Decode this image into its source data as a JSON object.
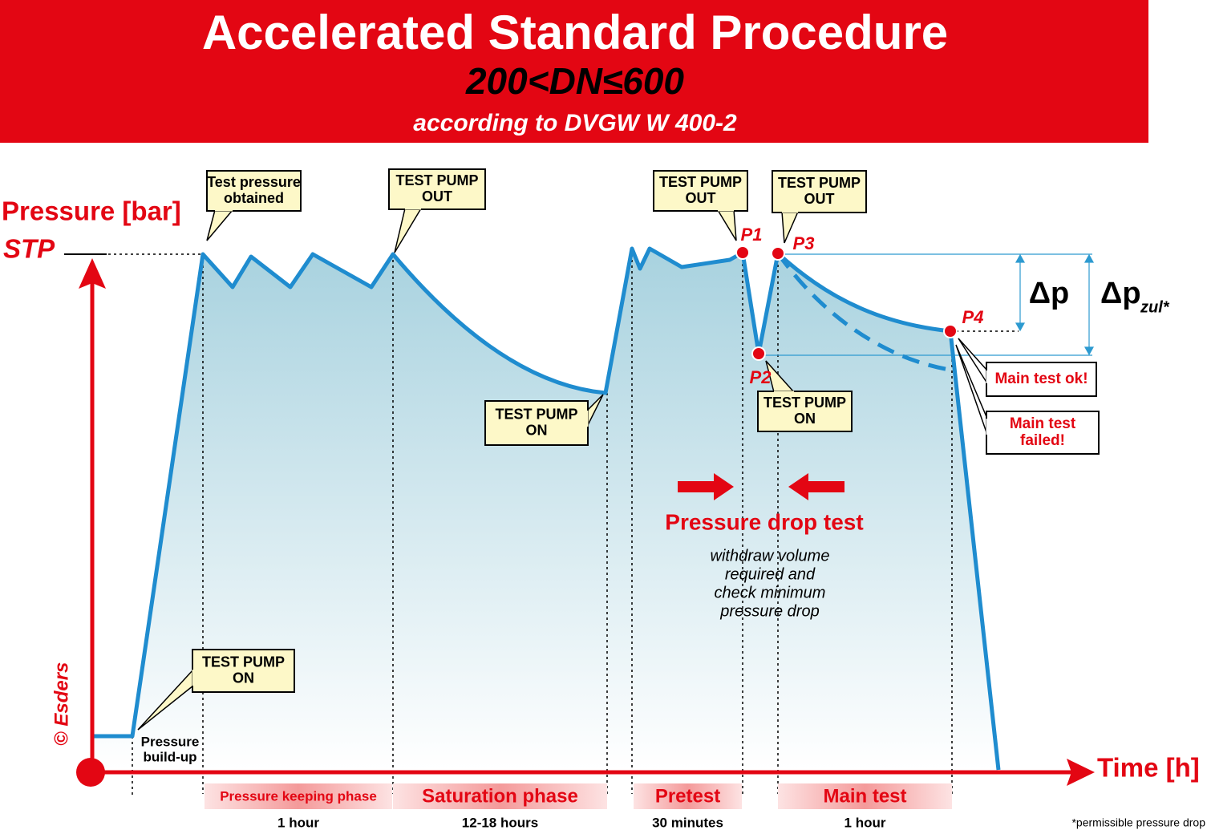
{
  "header": {
    "title": "Accelerated Standard Procedure",
    "subtitle": "200<DN≤600",
    "note": "according to DVGW W 400-2"
  },
  "axes": {
    "y_label": "Pressure [bar]",
    "stp": "STP",
    "x_label": "Time [h]"
  },
  "copyright": "© Esders",
  "callouts": [
    {
      "lines": [
        "Test pressure",
        "obtained"
      ]
    },
    {
      "lines": [
        "TEST PUMP",
        "OUT"
      ]
    },
    {
      "lines": [
        "TEST PUMP",
        "OUT"
      ]
    },
    {
      "lines": [
        "TEST PUMP",
        "OUT"
      ]
    },
    {
      "lines": [
        "TEST PUMP",
        "ON"
      ]
    },
    {
      "lines": [
        "TEST PUMP",
        "ON"
      ]
    },
    {
      "lines": [
        "TEST PUMP",
        "ON"
      ]
    }
  ],
  "build_up": [
    "Pressure",
    "build-up"
  ],
  "points": [
    "P1",
    "P2",
    "P3",
    "P4"
  ],
  "delta": {
    "dp": "Δp",
    "dp_zul": "Δp",
    "dp_zul_sub": "zul*"
  },
  "results": [
    {
      "lines": [
        "Main test ok!"
      ]
    },
    {
      "lines": [
        "Main test",
        "failed!"
      ]
    }
  ],
  "pressure_drop_test": {
    "title": "Pressure drop test",
    "description": [
      "withdraw volume",
      "required and",
      "check minimum",
      "pressure drop"
    ]
  },
  "phases": [
    {
      "name": "Pressure keeping phase",
      "duration": "1 hour"
    },
    {
      "name": "Saturation phase",
      "duration": "12-18 hours"
    },
    {
      "name": "Pretest",
      "duration": "30 minutes"
    },
    {
      "name": "Main test",
      "duration": "1 hour"
    }
  ],
  "footnote": "*permissible pressure drop"
}
